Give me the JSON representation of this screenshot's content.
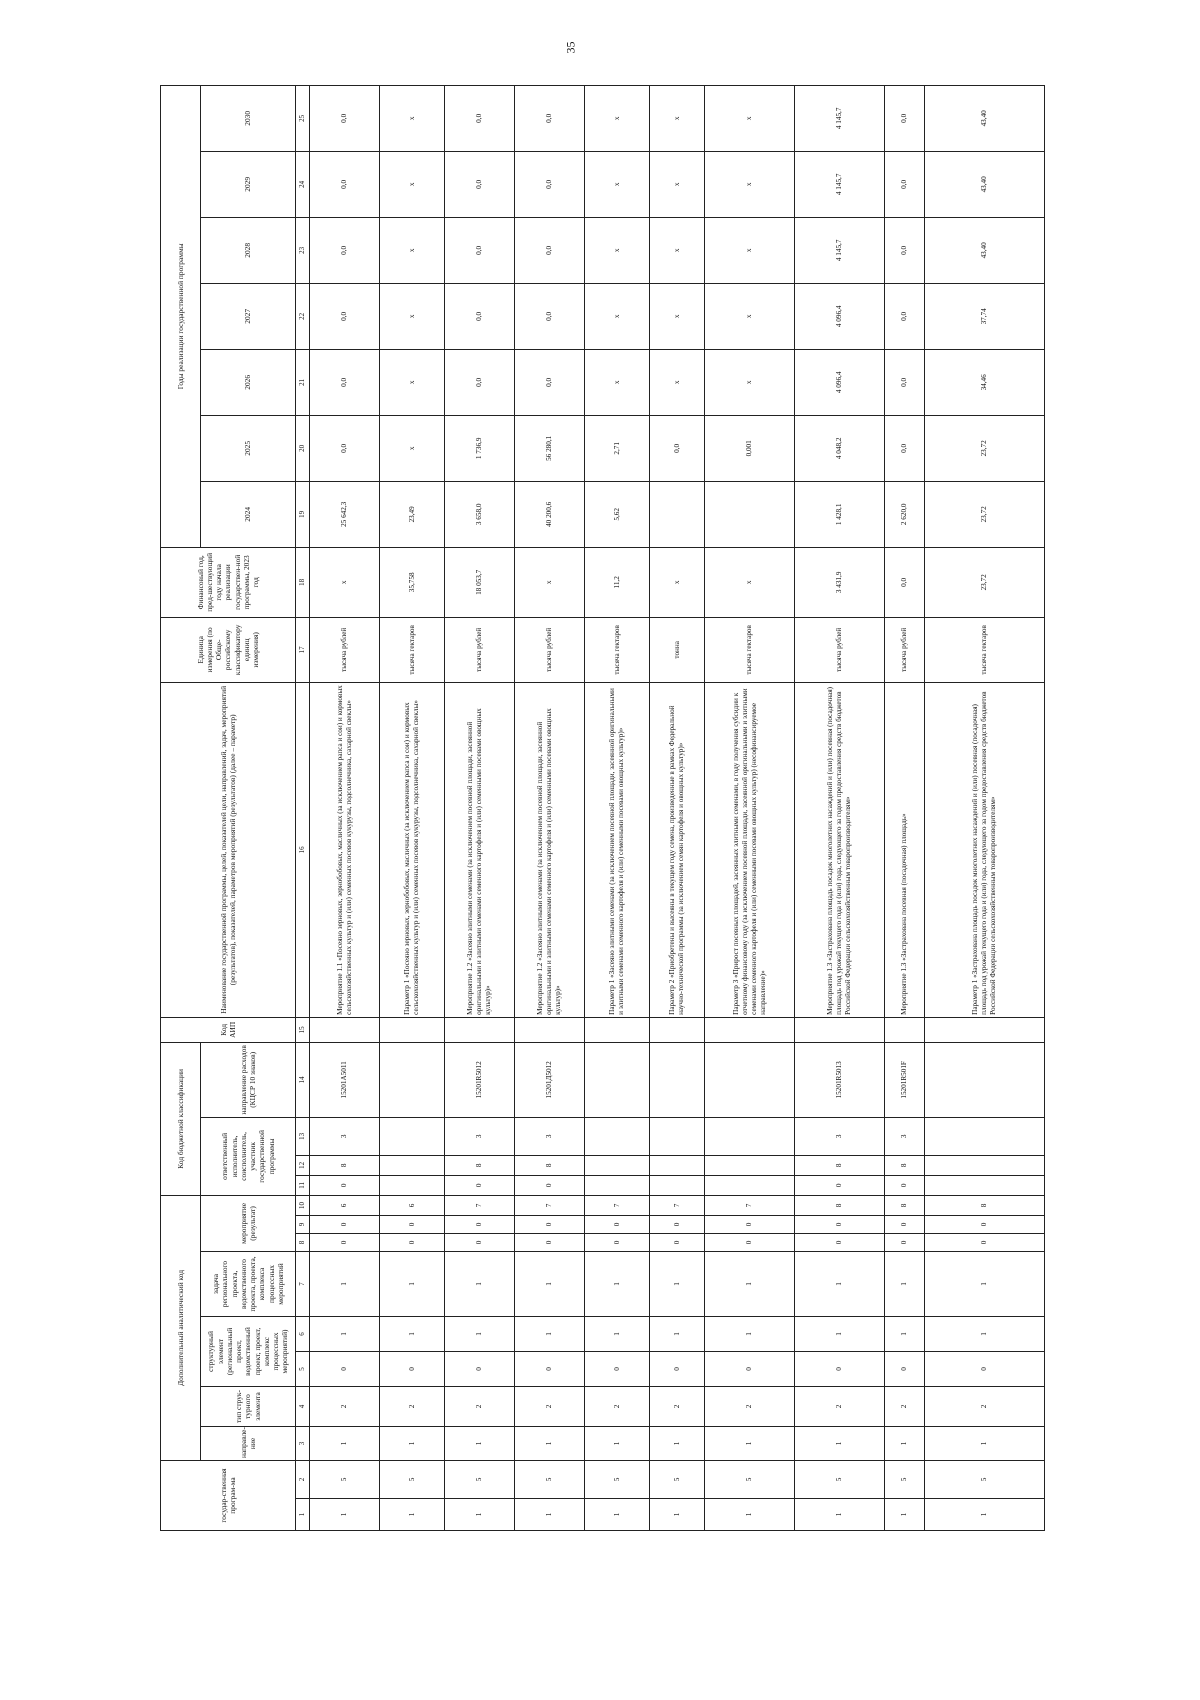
{
  "page_number": "35",
  "header": {
    "gp": "государ-ственная програм-ма",
    "dak": "Дополнительный аналитический код",
    "direction": "направле-ние",
    "se_type": "тип струк-турного элемента",
    "se": "структурный элемент (региональный проект, ведомственный проект, проект, комплекс процессных мероприятий)",
    "task": "задача регионального проекта, ведомственного проекта, проекта, комплекса процессных мероприятий",
    "event": "мероприятие (результат)",
    "kbk": "Код бюджетной классификации",
    "executor": "ответственный исполнитель, соисполнитель, участник государственной программы",
    "kcsr": "направление расходов (КЦСР 10 знаков)",
    "aip": "Код АИП",
    "name": "Наименование государственной программы, целей, показателей цели, направлений, задач, мероприятий (результатов), показателей, параметров мероприятий (результатов) (далее – параметр)",
    "unit": "Единица измерения (по Обще-российскому классификатору единиц измерения)",
    "base_year": "Финансовый год, пред-шествующий году начала реализации государствен-ной программы, 2023 год",
    "years_title": "Годы реализации государственной программы",
    "years": [
      "2024",
      "2025",
      "2026",
      "2027",
      "2028",
      "2029",
      "2030"
    ],
    "numbers": [
      "1",
      "2",
      "3",
      "4",
      "5",
      "6",
      "7",
      "8",
      "9",
      "10",
      "11",
      "12",
      "13",
      "14",
      "15",
      "16",
      "17",
      "18",
      "19",
      "20",
      "21",
      "22",
      "23",
      "24",
      "25"
    ]
  },
  "rows": [
    {
      "codes": [
        "1",
        "5",
        "1",
        "2",
        "0",
        "1",
        "1",
        "0",
        "0",
        "6",
        "0",
        "8",
        "3",
        "15201A5011",
        ""
      ],
      "name": "Мероприятие 1.1 «Посеяно зерновых, зернобобовых, масличных (за исключением рапса и сои) и кормовых сельскохозяйственных культур и (или) семенных посевов кукурузы, подсолнечника, сахарной свеклы»",
      "unit": "тысяча рублей",
      "values": [
        "x",
        "25 642,3",
        "0,0",
        "0,0",
        "0,0",
        "0,0",
        "0,0",
        "0,0"
      ]
    },
    {
      "codes": [
        "1",
        "5",
        "1",
        "2",
        "0",
        "1",
        "1",
        "0",
        "0",
        "6",
        "",
        "",
        "",
        "",
        ""
      ],
      "name": "Параметр 1 «Посеяно зерновых, зернобобовых, масличных (за исключением рапса и сои) и кормовых сельскохозяйственных культур и (или) семенных посевов кукурузы, подсолнечника, сахарной свеклы»",
      "unit": "тысяча гектаров",
      "values": [
        "35,758",
        "23,49",
        "x",
        "x",
        "x",
        "x",
        "x",
        "x"
      ]
    },
    {
      "codes": [
        "1",
        "5",
        "1",
        "2",
        "0",
        "1",
        "1",
        "0",
        "0",
        "7",
        "0",
        "8",
        "3",
        "15201R5012",
        ""
      ],
      "name": "Мероприятие 1.2 «Засеяно элитными семенами (за исключением посевной площади, засеянной оригинальными и элитными семенами семенного картофеля и (или) семенными посевами овощных культур)»",
      "unit": "тысяча рублей",
      "values": [
        "18 053,7",
        "3 658,0",
        "1 736,9",
        "0,0",
        "0,0",
        "0,0",
        "0,0",
        "0,0"
      ]
    },
    {
      "codes": [
        "1",
        "5",
        "1",
        "2",
        "0",
        "1",
        "1",
        "0",
        "0",
        "7",
        "0",
        "8",
        "3",
        "15201Д5012",
        ""
      ],
      "name": "Мероприятие 1.2 «Засеяно элитными семенами (за исключением посевной площади, засеянной оригинальными и элитными семенами семенного картофеля и (или) семенными посевами овощных культур)»",
      "unit": "тысяча рублей",
      "values": [
        "x",
        "40 200,6",
        "56 280,1",
        "0,0",
        "0,0",
        "0,0",
        "0,0",
        "0,0"
      ]
    },
    {
      "codes": [
        "1",
        "5",
        "1",
        "2",
        "0",
        "1",
        "1",
        "0",
        "0",
        "7",
        "",
        "",
        "",
        "",
        ""
      ],
      "name": "Параметр 1 «Засеяно элитными семенами (за исключением посевной площади, засеянной оригинальными и элитными семенами семенного картофеля и (или) семенными посевами овощных культур)»",
      "unit": "тысяча гектаров",
      "values": [
        "11,2",
        "5,62",
        "2,71",
        "x",
        "x",
        "x",
        "x",
        "x"
      ]
    },
    {
      "codes": [
        "1",
        "5",
        "1",
        "2",
        "0",
        "1",
        "1",
        "0",
        "0",
        "7",
        "",
        "",
        "",
        "",
        ""
      ],
      "name": "Параметр 2 «Приобретены и высеяны в текущем году семена, произведенные в рамках Федеральной научно-технической программы (за исключением семян картофеля и овощных культур)»",
      "unit": "тонна",
      "values": [
        "x",
        "",
        "0,0",
        "x",
        "x",
        "x",
        "x",
        "x"
      ]
    },
    {
      "codes": [
        "1",
        "5",
        "1",
        "2",
        "0",
        "1",
        "1",
        "0",
        "0",
        "7",
        "",
        "",
        "",
        "",
        ""
      ],
      "name": "Параметр 3 «Прирост посевных площадей, засеянных элитными семенами, в году получения субсидии к отчетному финансовому году (за исключением посевной площади, засеянной оригинальными и элитными семенами семенного картофеля и (или) семенными посевами овощных культур) (несофинансируемое направление)»",
      "unit": "тысяча гектаров",
      "values": [
        "x",
        "",
        "0,001",
        "x",
        "x",
        "x",
        "x",
        "x"
      ]
    },
    {
      "codes": [
        "1",
        "5",
        "1",
        "2",
        "0",
        "1",
        "1",
        "0",
        "0",
        "8",
        "0",
        "8",
        "3",
        "15201R5013",
        ""
      ],
      "name": "Мероприятие 1.3 «Застрахована площадь посадок многолетних насаждений и (или) посевная (посадочная) площадь под урожай текущего года и (или) года, следующего за годом предоставления средств бюджетов Российской Федерации сельскохозяйственным товаропроизводителям»",
      "unit": "тысяча рублей",
      "values": [
        "3 431,9",
        "1 428,1",
        "4 048,2",
        "4 096,4",
        "4 096,4",
        "4 145,7",
        "4 145,7",
        "4 145,7"
      ]
    },
    {
      "codes": [
        "1",
        "5",
        "1",
        "2",
        "0",
        "1",
        "1",
        "0",
        "0",
        "8",
        "0",
        "8",
        "3",
        "15201R501F",
        ""
      ],
      "name": "Мероприятие 1.3 «Застрахована посевная (посадочная) площадь»",
      "unit": "тысяча рублей",
      "values": [
        "0,0",
        "2 620,0",
        "0,0",
        "0,0",
        "0,0",
        "0,0",
        "0,0",
        "0,0"
      ]
    },
    {
      "codes": [
        "1",
        "5",
        "1",
        "2",
        "0",
        "1",
        "1",
        "0",
        "0",
        "8",
        "",
        "",
        "",
        "",
        ""
      ],
      "name": "Параметр 1 «Застрахована площадь посадок многолетних насаждений и (или) посевная (посадочная) площадь под урожай текущего года и (или) года, следующего за годом предоставления средств бюджетов Российской Федерации сельскохозяйственным товаропроизводителям»",
      "unit": "тысяча гектаров",
      "values": [
        "23,72",
        "23,72",
        "23,72",
        "34,46",
        "37,74",
        "43,40",
        "43,40",
        "43,40"
      ]
    }
  ]
}
